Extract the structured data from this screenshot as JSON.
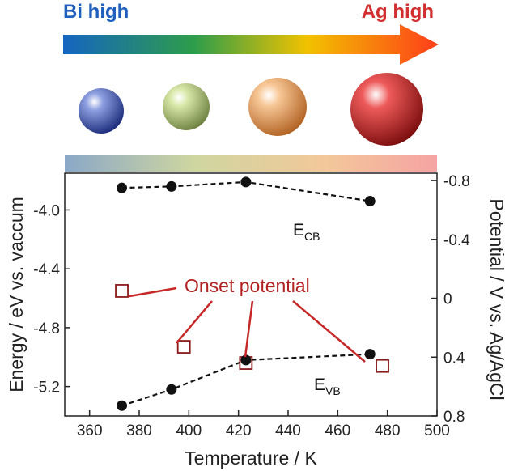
{
  "header": {
    "left_label": "Bi high",
    "right_label": "Ag high",
    "left_color": "#1f5fbf",
    "right_color": "#d32f2f"
  },
  "spheres": [
    {
      "color": "#3d55b0"
    },
    {
      "color": "#b8d07a"
    },
    {
      "color": "#f0a666"
    },
    {
      "color": "#d63030"
    }
  ],
  "chart_data": {
    "type": "scatter",
    "xlabel": "Temperature / K",
    "ylabel": "Energy / eV vs. vaccum",
    "y2label": "Potential / V vs. Ag/AgCl",
    "xlim": [
      350,
      500
    ],
    "ylim": [
      -5.4,
      -3.75
    ],
    "y2lim": [
      0.8,
      -0.85
    ],
    "xticks": [
      360,
      380,
      400,
      420,
      440,
      460,
      480,
      500
    ],
    "yticks": [
      -4.0,
      -4.4,
      -4.8,
      -5.2
    ],
    "ytick_labels": [
      "-4.0",
      "-4.4",
      "-4.8",
      "-5.2"
    ],
    "y2ticks": [
      -0.8,
      -0.4,
      0,
      0.4,
      0.8
    ],
    "y2tick_labels": [
      "-0.8",
      "-0.4",
      "0",
      "0.4",
      "0.8"
    ],
    "series": [
      {
        "name": "E_CB",
        "label_main": "E",
        "label_sub": "CB",
        "marker": "filled-circle",
        "x": [
          373,
          393,
          423,
          473
        ],
        "y": [
          -3.85,
          -3.84,
          -3.81,
          -3.94
        ]
      },
      {
        "name": "E_VB",
        "label_main": "E",
        "label_sub": "VB",
        "marker": "filled-circle",
        "x": [
          373,
          393,
          423,
          473
        ],
        "y": [
          -5.33,
          -5.22,
          -5.02,
          -4.98
        ]
      },
      {
        "name": "Onset potential",
        "marker": "open-square",
        "color": "#8b1a1a",
        "x": [
          373,
          398,
          423,
          478
        ],
        "y": [
          -4.55,
          -4.93,
          -5.04,
          -5.06
        ]
      }
    ],
    "annotation": "Onset potential",
    "grid": false
  }
}
